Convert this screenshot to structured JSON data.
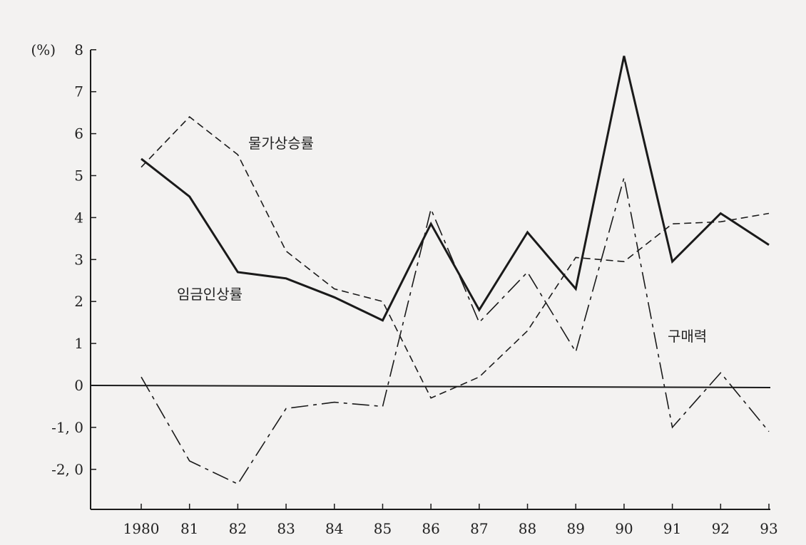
{
  "chart_data": {
    "type": "line",
    "title": "",
    "xlabel": "",
    "ylabel": "(%)",
    "ylim": [
      -3,
      8
    ],
    "y_ticks": [
      {
        "value": 8,
        "label": "8"
      },
      {
        "value": 7,
        "label": "7"
      },
      {
        "value": 6,
        "label": "6"
      },
      {
        "value": 5,
        "label": "5"
      },
      {
        "value": 4,
        "label": "4"
      },
      {
        "value": 3,
        "label": "3"
      },
      {
        "value": 2,
        "label": "2"
      },
      {
        "value": 1,
        "label": "1"
      },
      {
        "value": 0,
        "label": "0"
      },
      {
        "value": -1,
        "label": "-1, 0"
      },
      {
        "value": -2,
        "label": "-2, 0"
      }
    ],
    "categories": [
      "1980",
      "81",
      "82",
      "83",
      "84",
      "85",
      "86",
      "87",
      "88",
      "89",
      "90",
      "91",
      "92",
      "93"
    ],
    "series": [
      {
        "name": "임금인상률",
        "style": "solid",
        "values": [
          5.4,
          4.5,
          2.7,
          2.55,
          2.1,
          1.55,
          3.85,
          1.8,
          3.65,
          2.3,
          7.85,
          2.95,
          4.1,
          3.35
        ]
      },
      {
        "name": "물가상승률",
        "style": "dashed",
        "values": [
          5.2,
          6.4,
          5.5,
          3.2,
          2.3,
          2.0,
          -0.3,
          0.2,
          1.3,
          3.05,
          2.95,
          3.85,
          3.9,
          4.1
        ]
      },
      {
        "name": "구매력",
        "style": "dashdot",
        "values": [
          0.2,
          -1.8,
          -2.35,
          -0.55,
          -0.4,
          -0.5,
          4.2,
          1.5,
          2.7,
          0.8,
          4.95,
          -1.0,
          0.3,
          -1.1
        ]
      }
    ],
    "grid": false,
    "legend": "inline"
  },
  "colors": {
    "line": "#1a1a1a",
    "background": "#f3f2f1"
  }
}
